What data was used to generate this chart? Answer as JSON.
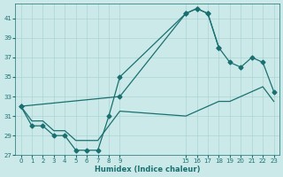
{
  "bg_color": "#cce9e9",
  "grid_color": "#aad4d4",
  "line_color": "#1a7070",
  "xlabel": "Humidex (Indice chaleur)",
  "xlim": [
    -0.5,
    23.5
  ],
  "ylim": [
    27,
    42.5
  ],
  "yticks": [
    27,
    29,
    31,
    33,
    35,
    37,
    39,
    41
  ],
  "xticks": [
    0,
    1,
    2,
    3,
    4,
    5,
    6,
    7,
    8,
    9,
    15,
    16,
    17,
    18,
    19,
    20,
    21,
    22,
    23
  ],
  "line1_x": [
    0,
    1,
    2,
    3,
    4,
    5,
    6,
    7,
    8,
    9,
    15,
    16,
    17,
    18
  ],
  "line1_y": [
    32,
    30,
    30,
    29,
    29,
    27.5,
    27.5,
    27.5,
    31,
    35,
    41.5,
    42.0,
    41.5,
    38.0
  ],
  "line2_x": [
    0,
    9,
    15,
    16,
    17,
    18,
    19,
    20,
    21,
    22,
    23
  ],
  "line2_y": [
    32,
    33,
    41.5,
    42.0,
    41.5,
    38.0,
    36.5,
    36.0,
    37.0,
    36.5,
    33.5
  ],
  "line3_x": [
    0,
    1,
    2,
    3,
    4,
    5,
    6,
    7,
    8,
    9,
    15,
    16,
    17,
    18,
    19,
    20,
    21,
    22,
    23
  ],
  "line3_y": [
    32,
    30.5,
    30.5,
    29.5,
    29.5,
    28.5,
    28.5,
    28.5,
    30.0,
    31.5,
    31.0,
    31.5,
    32.0,
    32.5,
    32.5,
    33.0,
    33.5,
    34.0,
    32.5
  ],
  "markers_line1": true,
  "markers_line2": true,
  "markers_line3": false
}
